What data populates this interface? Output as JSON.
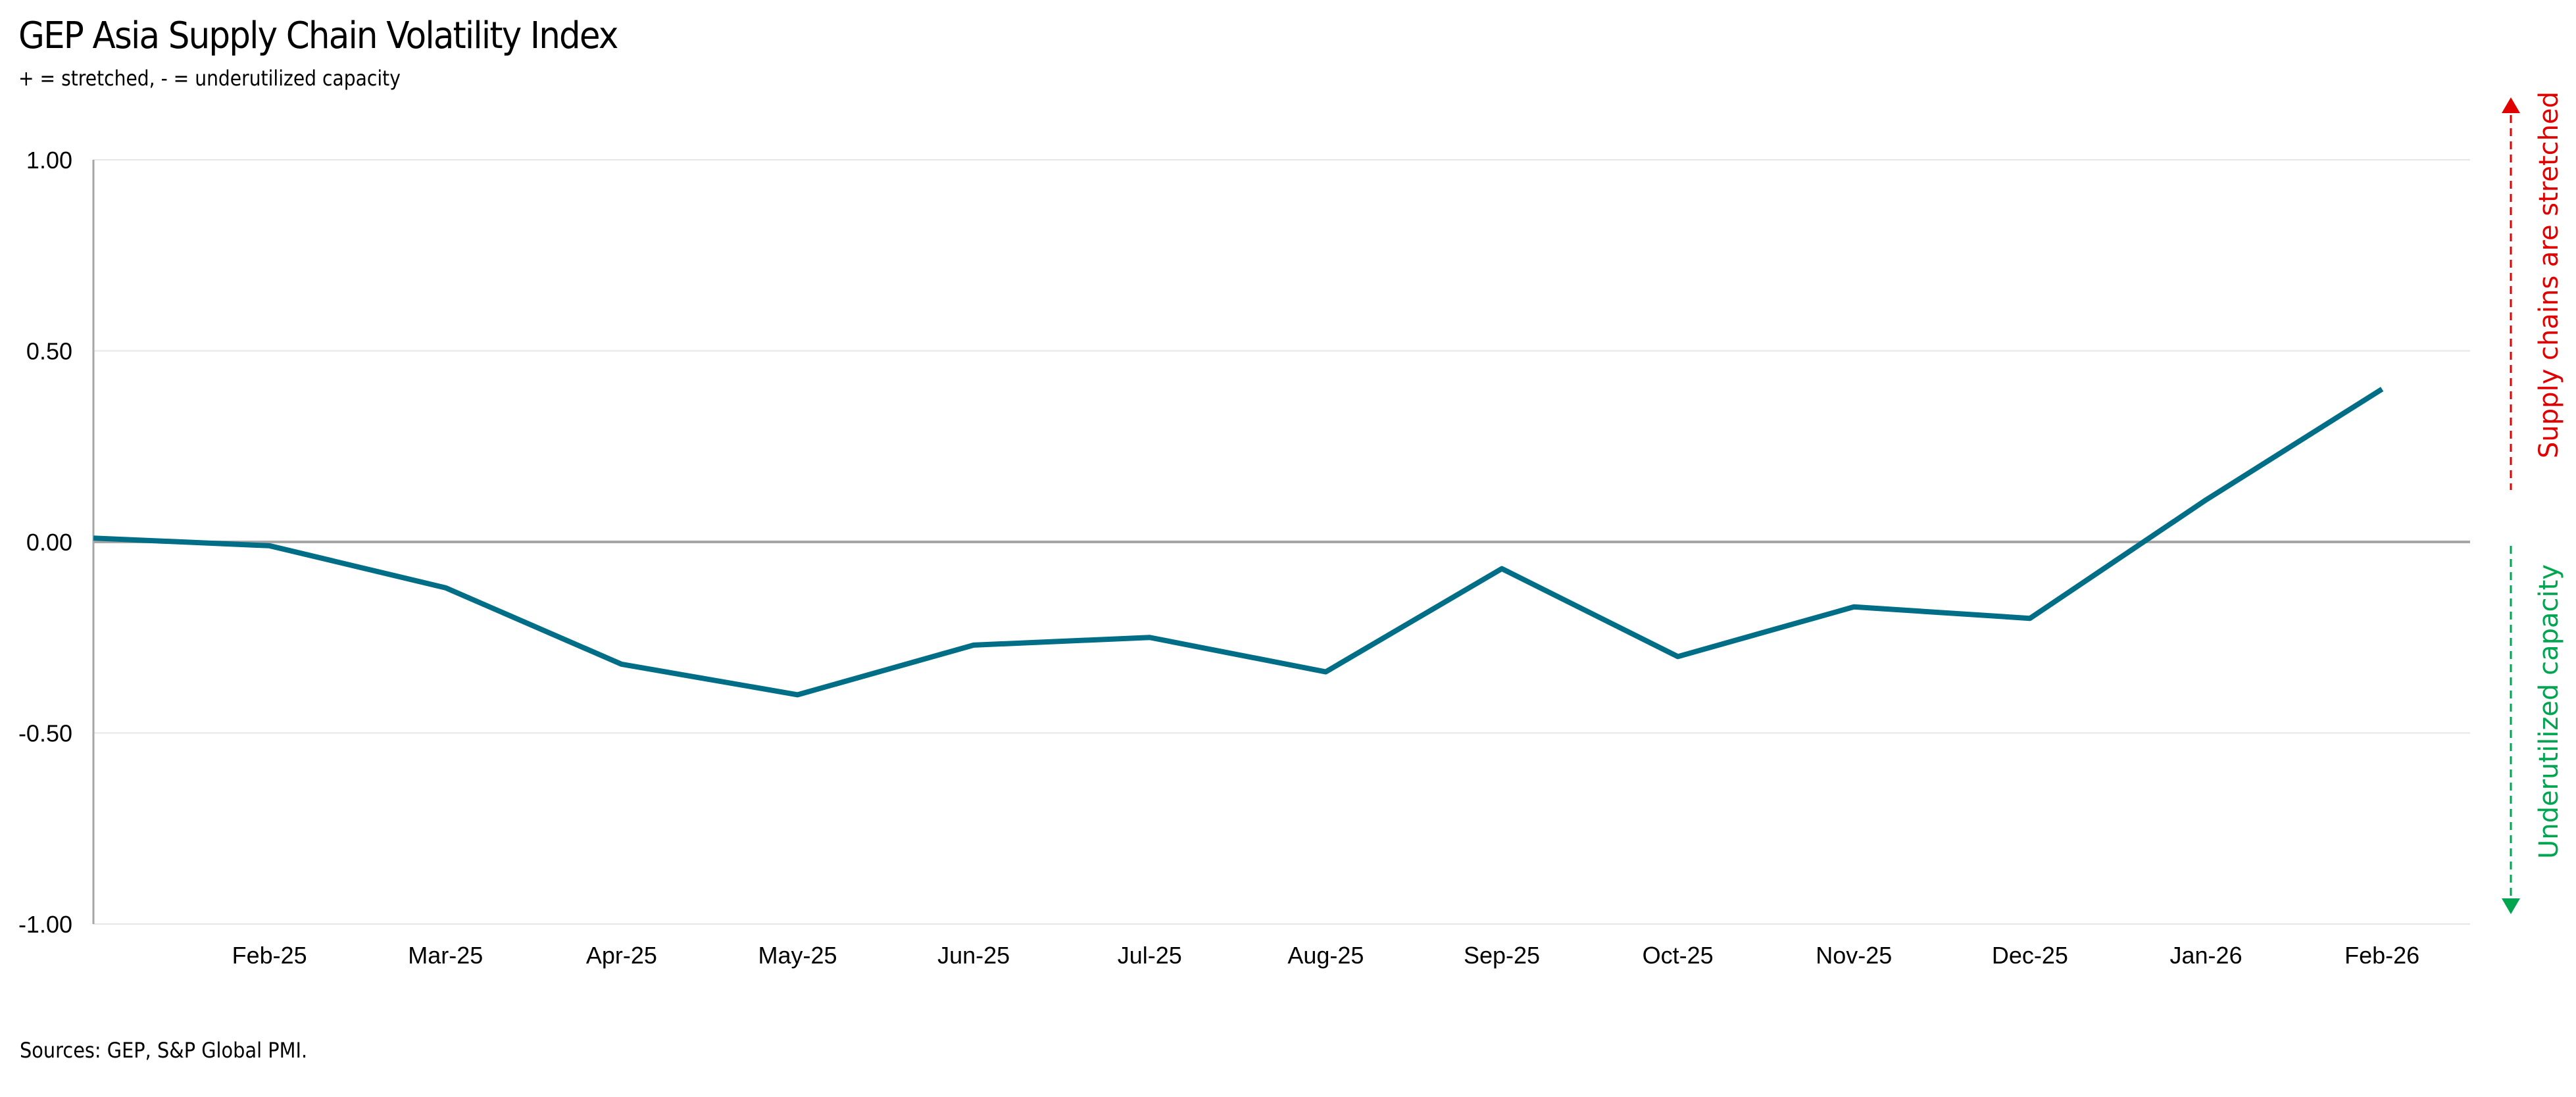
{
  "chart_data": {
    "type": "line",
    "title": "GEP Asia Supply Chain Volatility Index",
    "subtitle": "+ = stretched, - = underutilized capacity",
    "source": "Sources: GEP, S&P Global PMI.",
    "categories": [
      "Feb-25",
      "Mar-25",
      "Apr-25",
      "May-25",
      "Jun-25",
      "Jul-25",
      "Aug-25",
      "Sep-25",
      "Oct-25",
      "Nov-25",
      "Dec-25",
      "Jan-26",
      "Feb-26"
    ],
    "left_edge_value": 0.01,
    "series": [
      {
        "name": "GEP Asia Supply Chain Volatility Index",
        "color": "#006E87",
        "values": [
          -0.01,
          -0.12,
          -0.32,
          -0.4,
          -0.27,
          -0.25,
          -0.34,
          -0.07,
          -0.3,
          -0.17,
          -0.2,
          0.11,
          0.4
        ]
      }
    ],
    "ylim": [
      -1,
      1
    ],
    "yticks": [
      1.0,
      0.5,
      0.0,
      -0.5,
      -1.0
    ],
    "ytick_labels": [
      "1.00",
      "0.50",
      "0.00",
      "-0.50",
      "-1.00"
    ],
    "grid": true,
    "annotations": {
      "up_label": "Supply chains are stretched",
      "up_color": "#E00000",
      "down_label": "Underutilized capacity",
      "down_color": "#00A550"
    }
  }
}
